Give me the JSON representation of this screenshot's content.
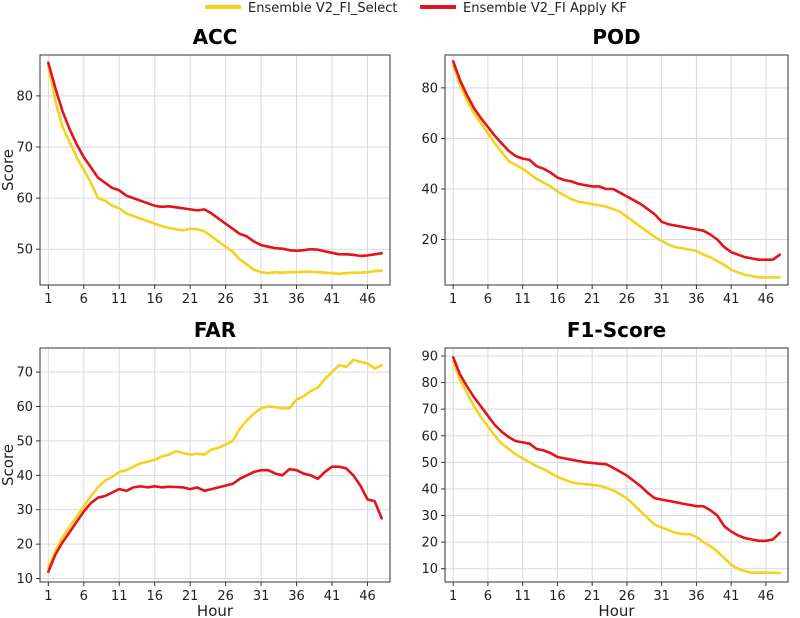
{
  "legend": {
    "items": [
      {
        "label": "Ensemble V2_FI_Select",
        "color": "#F5D21F"
      },
      {
        "label": "Ensemble V2_FI Apply KF",
        "color": "#E3141B"
      }
    ]
  },
  "chart_data": [
    {
      "type": "line",
      "title": "ACC",
      "xlabel": "",
      "ylabel": "Score",
      "xlim": [
        1,
        48
      ],
      "ylim": [
        43,
        88
      ],
      "xticks": [
        1,
        6,
        11,
        16,
        21,
        26,
        31,
        36,
        41,
        46
      ],
      "yticks": [
        50,
        60,
        70,
        80
      ],
      "grid": true,
      "series": [
        {
          "name": "Ensemble V2_FI_Select",
          "color": "#F5D21F",
          "x": [
            1,
            2,
            3,
            4,
            5,
            6,
            7,
            8,
            9,
            10,
            11,
            12,
            13,
            14,
            15,
            16,
            17,
            18,
            19,
            20,
            21,
            22,
            23,
            24,
            25,
            26,
            27,
            28,
            29,
            30,
            31,
            32,
            33,
            34,
            35,
            36,
            37,
            38,
            39,
            40,
            41,
            42,
            43,
            44,
            45,
            46,
            47,
            48
          ],
          "values": [
            86,
            79,
            74,
            71,
            68,
            65.5,
            63,
            60,
            59.5,
            58.5,
            58,
            57,
            56.5,
            56,
            55.5,
            55,
            54.5,
            54.2,
            53.9,
            53.7,
            54,
            53.9,
            53.5,
            52.5,
            51.5,
            50.5,
            49.5,
            48,
            47,
            46,
            45.5,
            45.3,
            45.5,
            45.4,
            45.5,
            45.5,
            45.6,
            45.6,
            45.5,
            45.4,
            45.3,
            45.2,
            45.3,
            45.4,
            45.4,
            45.5,
            45.7,
            45.8
          ]
        },
        {
          "name": "Ensemble V2_FI Apply KF",
          "color": "#E3141B",
          "x": [
            1,
            2,
            3,
            4,
            5,
            6,
            7,
            8,
            9,
            10,
            11,
            12,
            13,
            14,
            15,
            16,
            17,
            18,
            19,
            20,
            21,
            22,
            23,
            24,
            25,
            26,
            27,
            28,
            29,
            30,
            31,
            32,
            33,
            34,
            35,
            36,
            37,
            38,
            39,
            40,
            41,
            42,
            43,
            44,
            45,
            46,
            47,
            48
          ],
          "values": [
            86.5,
            81.5,
            77,
            73.5,
            70.5,
            68,
            66,
            64,
            63,
            62,
            61.5,
            60.5,
            60,
            59.5,
            59,
            58.5,
            58.3,
            58.4,
            58.2,
            58,
            57.8,
            57.6,
            57.8,
            57,
            56,
            55,
            54,
            53,
            52.5,
            51.5,
            50.8,
            50.5,
            50.2,
            50.1,
            49.8,
            49.7,
            49.8,
            50,
            49.9,
            49.6,
            49.3,
            49,
            49,
            48.9,
            48.7,
            48.8,
            49,
            49.2
          ]
        }
      ]
    },
    {
      "type": "line",
      "title": "POD",
      "xlabel": "",
      "ylabel": "",
      "xlim": [
        1,
        48
      ],
      "ylim": [
        2,
        93
      ],
      "xticks": [
        1,
        6,
        11,
        16,
        21,
        26,
        31,
        36,
        41,
        46
      ],
      "yticks": [
        20,
        40,
        60,
        80
      ],
      "grid": true,
      "series": [
        {
          "name": "Ensemble V2_FI_Select",
          "color": "#F5D21F",
          "x": [
            1,
            2,
            3,
            4,
            5,
            6,
            7,
            8,
            9,
            10,
            11,
            12,
            13,
            14,
            15,
            16,
            17,
            18,
            19,
            20,
            21,
            22,
            23,
            24,
            25,
            26,
            27,
            28,
            29,
            30,
            31,
            32,
            33,
            34,
            35,
            36,
            37,
            38,
            39,
            40,
            41,
            42,
            43,
            44,
            45,
            46,
            47,
            48
          ],
          "values": [
            89,
            81,
            75,
            70,
            66,
            62,
            58,
            54.5,
            51,
            49.5,
            48,
            46,
            44,
            42.5,
            41,
            39,
            37.5,
            36,
            35,
            34.5,
            34,
            33.5,
            33,
            32,
            31,
            29,
            27,
            25,
            23,
            21,
            19.5,
            18,
            17,
            16.5,
            16,
            15.5,
            14,
            13,
            11.5,
            10,
            8,
            7,
            6,
            5.5,
            5,
            5,
            5,
            5
          ]
        },
        {
          "name": "Ensemble V2_FI Apply KF",
          "color": "#E3141B",
          "x": [
            1,
            2,
            3,
            4,
            5,
            6,
            7,
            8,
            9,
            10,
            11,
            12,
            13,
            14,
            15,
            16,
            17,
            18,
            19,
            20,
            21,
            22,
            23,
            24,
            25,
            26,
            27,
            28,
            29,
            30,
            31,
            32,
            33,
            34,
            35,
            36,
            37,
            38,
            39,
            40,
            41,
            42,
            43,
            44,
            45,
            46,
            47,
            48
          ],
          "values": [
            90.5,
            83,
            77,
            72,
            68,
            64.5,
            61,
            58,
            55,
            53,
            52,
            51.5,
            49,
            48,
            46.5,
            44.5,
            43.5,
            43,
            42,
            41.5,
            41,
            41,
            40,
            40,
            38.5,
            37,
            35.5,
            34,
            32,
            30,
            27,
            26,
            25.5,
            25,
            24.5,
            24,
            23.5,
            22,
            20,
            17,
            15,
            14,
            13,
            12.5,
            12,
            12,
            12,
            14
          ]
        }
      ]
    },
    {
      "type": "line",
      "title": "FAR",
      "xlabel": "Hour",
      "ylabel": "Score",
      "xlim": [
        1,
        48
      ],
      "ylim": [
        9,
        77
      ],
      "xticks": [
        1,
        6,
        11,
        16,
        21,
        26,
        31,
        36,
        41,
        46
      ],
      "yticks": [
        10,
        20,
        30,
        40,
        50,
        60,
        70
      ],
      "grid": true,
      "series": [
        {
          "name": "Ensemble V2_FI_Select",
          "color": "#F5D21F",
          "x": [
            1,
            2,
            3,
            4,
            5,
            6,
            7,
            8,
            9,
            10,
            11,
            12,
            13,
            14,
            15,
            16,
            17,
            18,
            19,
            20,
            21,
            22,
            23,
            24,
            25,
            26,
            27,
            28,
            29,
            30,
            31,
            32,
            33,
            34,
            35,
            36,
            37,
            38,
            39,
            40,
            41,
            42,
            43,
            44,
            45,
            46,
            47,
            48
          ],
          "values": [
            13,
            18,
            22,
            25,
            28,
            31,
            34,
            36.5,
            38.5,
            39.5,
            41,
            41.5,
            42.5,
            43.5,
            44,
            44.5,
            45.5,
            46,
            47,
            46.5,
            46,
            46.3,
            46,
            47.5,
            48,
            49,
            50,
            53.5,
            56,
            58,
            59.5,
            60,
            59.8,
            59.5,
            59.5,
            62,
            63,
            64.5,
            65.5,
            68,
            70,
            72,
            71.5,
            73.5,
            73,
            72.5,
            71,
            72
          ]
        },
        {
          "name": "Ensemble V2_FI Apply KF",
          "color": "#E3141B",
          "x": [
            1,
            2,
            3,
            4,
            5,
            6,
            7,
            8,
            9,
            10,
            11,
            12,
            13,
            14,
            15,
            16,
            17,
            18,
            19,
            20,
            21,
            22,
            23,
            24,
            25,
            26,
            27,
            28,
            29,
            30,
            31,
            32,
            33,
            34,
            35,
            36,
            37,
            38,
            39,
            40,
            41,
            42,
            43,
            44,
            45,
            46,
            47,
            48
          ],
          "values": [
            12,
            17,
            20.5,
            23.5,
            26.5,
            29.5,
            32,
            33.5,
            34,
            35,
            36,
            35.5,
            36.5,
            36.8,
            36.5,
            36.8,
            36.5,
            36.7,
            36.6,
            36.5,
            36,
            36.5,
            35.5,
            36,
            36.5,
            37,
            37.5,
            39,
            40,
            41,
            41.5,
            41.5,
            40.5,
            40,
            41.8,
            41.5,
            40.5,
            40,
            39,
            41,
            42.5,
            42.5,
            42,
            40,
            37,
            33,
            32.5,
            27.5
          ]
        }
      ]
    },
    {
      "type": "line",
      "title": "F1-Score",
      "xlabel": "Hour",
      "ylabel": "",
      "xlim": [
        1,
        48
      ],
      "ylim": [
        5,
        93
      ],
      "xticks": [
        1,
        6,
        11,
        16,
        21,
        26,
        31,
        36,
        41,
        46
      ],
      "yticks": [
        10,
        20,
        30,
        40,
        50,
        60,
        70,
        80,
        90
      ],
      "grid": true,
      "series": [
        {
          "name": "Ensemble V2_FI_Select",
          "color": "#F5D21F",
          "x": [
            1,
            2,
            3,
            4,
            5,
            6,
            7,
            8,
            9,
            10,
            11,
            12,
            13,
            14,
            15,
            16,
            17,
            18,
            19,
            20,
            21,
            22,
            23,
            24,
            25,
            26,
            27,
            28,
            29,
            30,
            31,
            32,
            33,
            34,
            35,
            36,
            37,
            38,
            39,
            40,
            41,
            42,
            43,
            44,
            45,
            46,
            47,
            48
          ],
          "values": [
            88,
            81,
            76,
            71,
            67,
            63.5,
            60,
            57,
            55,
            53,
            51.5,
            50,
            48.5,
            47.5,
            46,
            44.5,
            43.5,
            42.5,
            42,
            41.8,
            41.5,
            41.2,
            40.5,
            39.5,
            38,
            36.5,
            34,
            31.5,
            29,
            26.5,
            25.5,
            24.5,
            23.5,
            23,
            23,
            22,
            20,
            18.5,
            16.5,
            14,
            11.5,
            10,
            9,
            8.5,
            8.5,
            8.5,
            8.5,
            8.3
          ]
        },
        {
          "name": "Ensemble V2_FI Apply KF",
          "color": "#E3141B",
          "x": [
            1,
            2,
            3,
            4,
            5,
            6,
            7,
            8,
            9,
            10,
            11,
            12,
            13,
            14,
            15,
            16,
            17,
            18,
            19,
            20,
            21,
            22,
            23,
            24,
            25,
            26,
            27,
            28,
            29,
            30,
            31,
            32,
            33,
            34,
            35,
            36,
            37,
            38,
            39,
            40,
            41,
            42,
            43,
            44,
            45,
            46,
            47,
            48
          ],
          "values": [
            89.5,
            83,
            78.5,
            74.5,
            71,
            67.5,
            64,
            61.5,
            59.5,
            58,
            57.5,
            57,
            55,
            54.5,
            53.5,
            52,
            51.5,
            51,
            50.5,
            50,
            49.8,
            49.5,
            49.3,
            48,
            46.5,
            45,
            43,
            41,
            38.5,
            36.5,
            36,
            35.5,
            35,
            34.5,
            34,
            33.5,
            33.5,
            32,
            30,
            26,
            24,
            22.5,
            21.5,
            21,
            20.5,
            20.5,
            21,
            23.5
          ]
        }
      ]
    }
  ]
}
